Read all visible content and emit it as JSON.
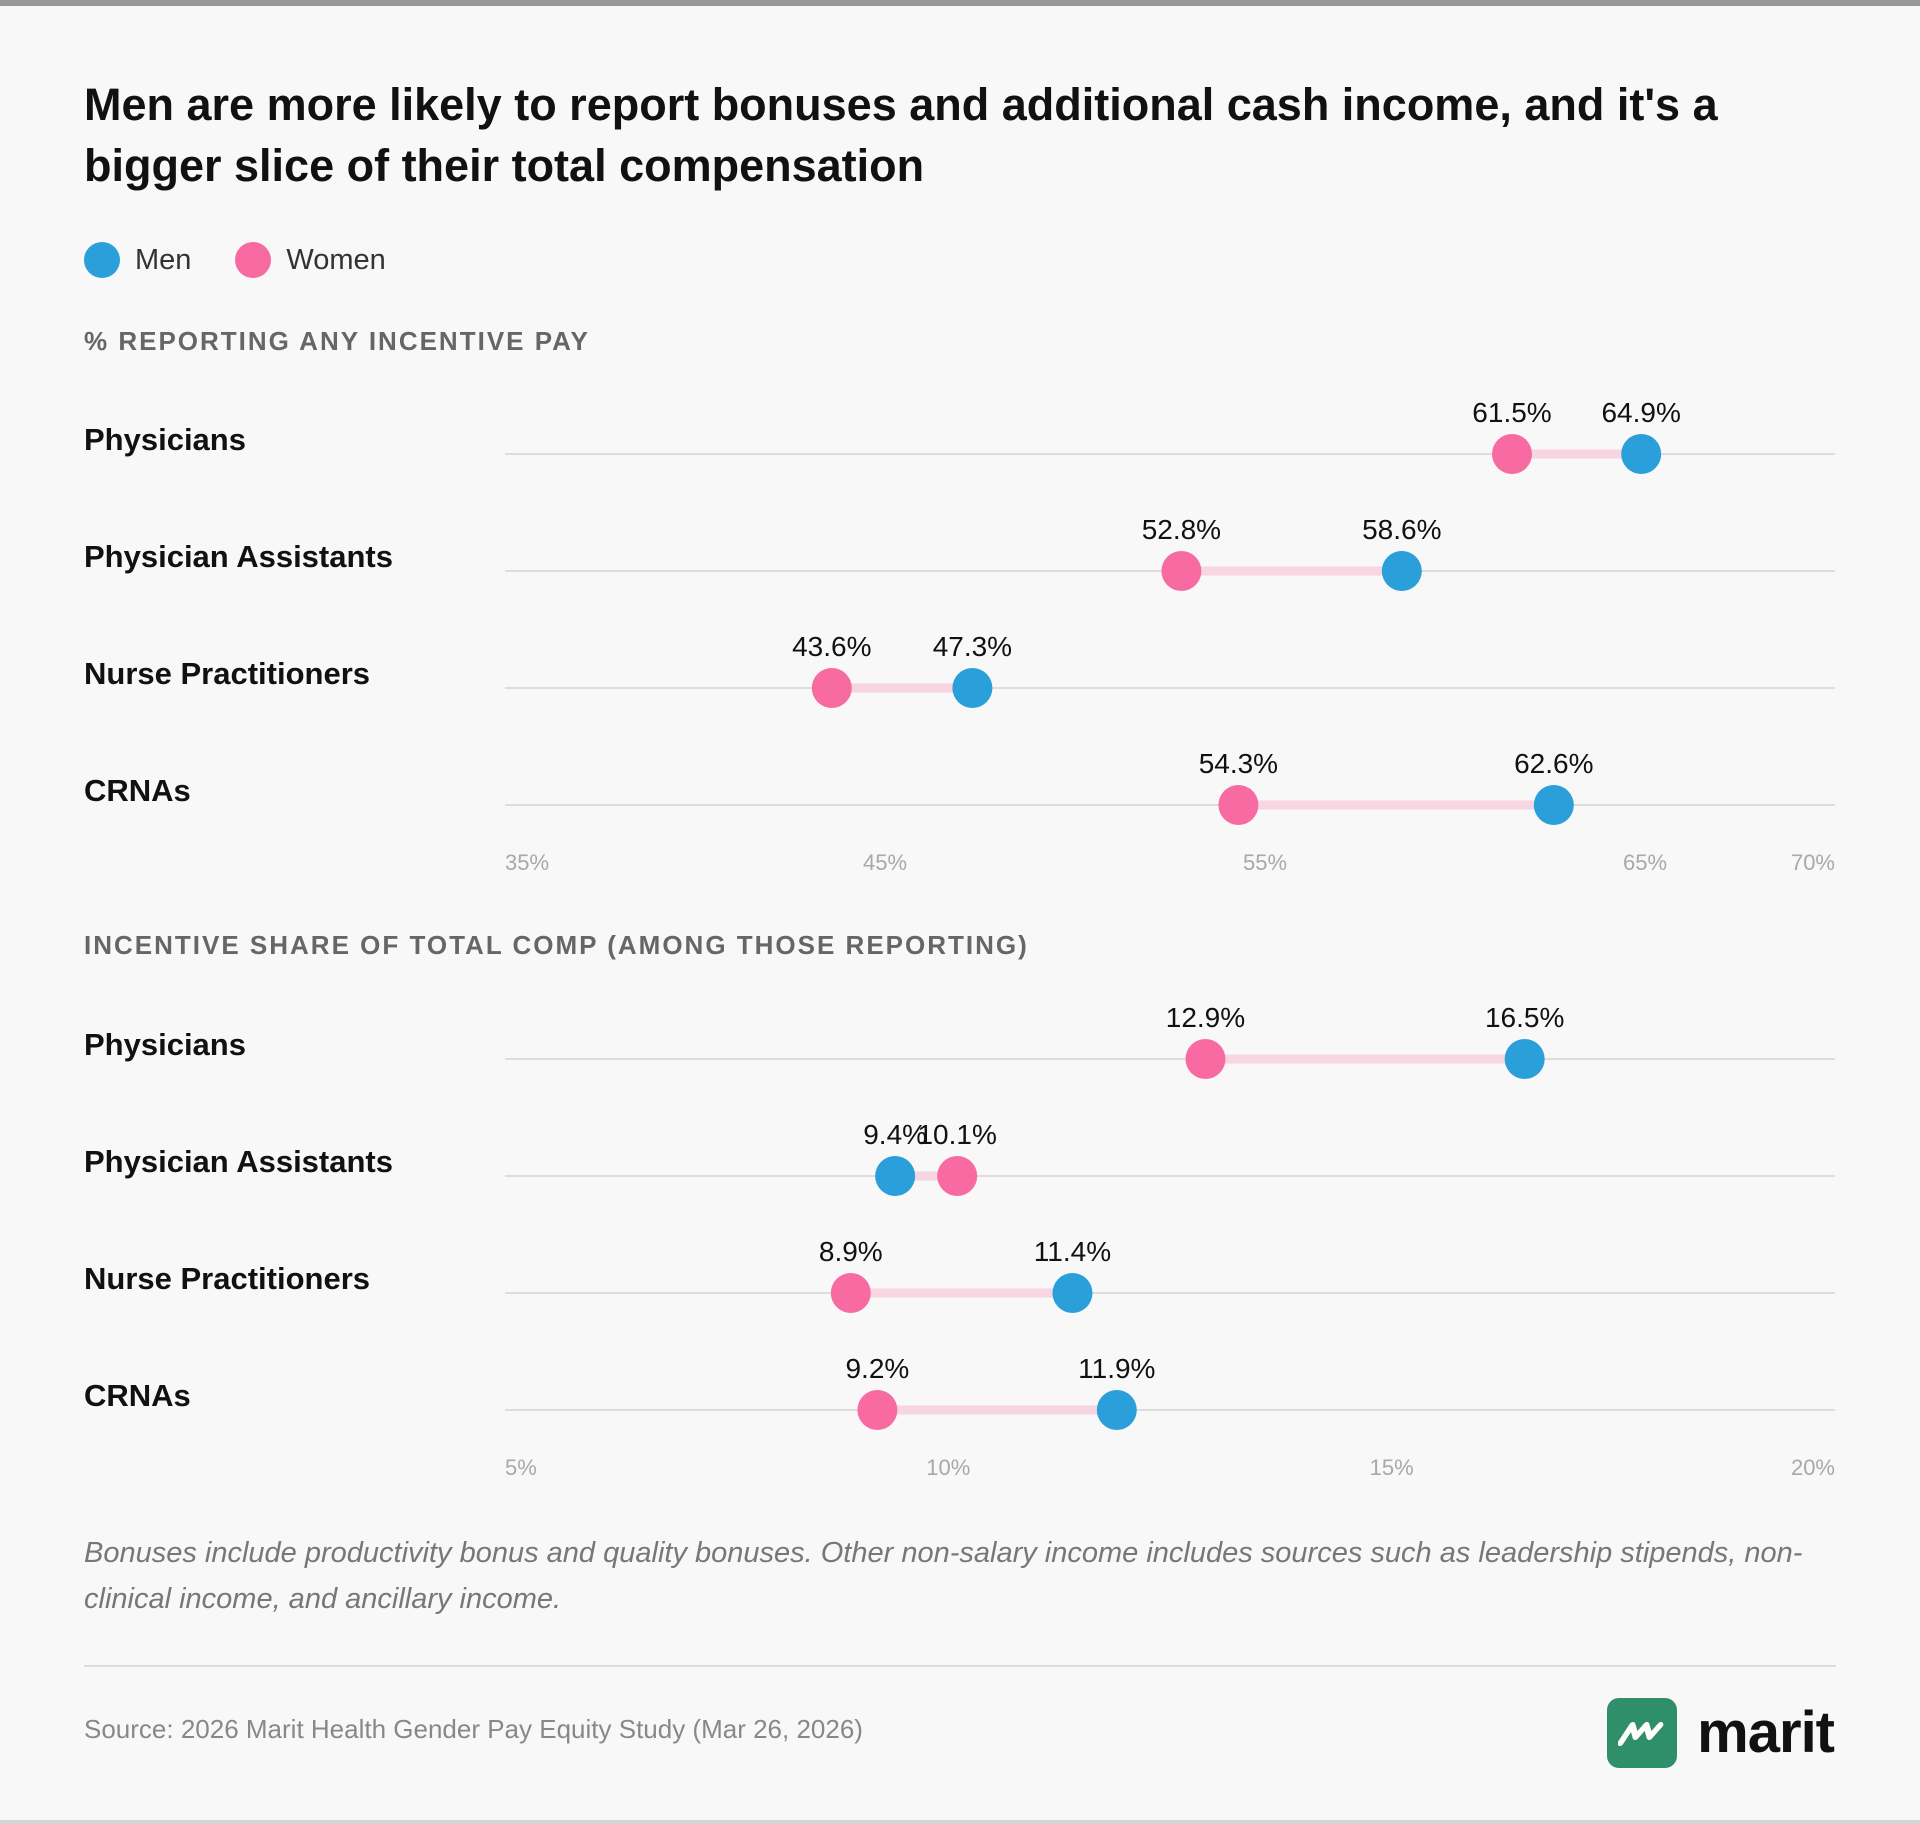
{
  "title": "Men are more likely to report bonuses and additional cash income, and it's a bigger slice of their total compensation",
  "legend": [
    {
      "name": "Men",
      "color": "#2b9fd9"
    },
    {
      "name": "Women",
      "color": "#f76ba2"
    }
  ],
  "colors": {
    "men": "#2b9fd9",
    "women": "#f76ba2",
    "connector": "#f7d5e2",
    "gridline": "#dddddd"
  },
  "chart_data": [
    {
      "type": "dumbbell",
      "title": "% REPORTING ANY INCENTIVE PAY",
      "categories": [
        "Physicians",
        "Physician Assistants",
        "Nurse Practitioners",
        "CRNAs"
      ],
      "series": [
        {
          "name": "Women",
          "values": [
            61.5,
            52.8,
            43.6,
            54.3
          ],
          "labels": [
            "61.5%",
            "52.8%",
            "43.6%",
            "54.3%"
          ]
        },
        {
          "name": "Men",
          "values": [
            64.9,
            58.6,
            47.3,
            62.6
          ],
          "labels": [
            "64.9%",
            "58.6%",
            "47.3%",
            "62.6%"
          ]
        }
      ],
      "xticks": [
        35,
        45,
        55,
        65,
        70
      ],
      "xtick_labels": [
        "35%",
        "45%",
        "55%",
        "65%",
        "70%"
      ],
      "xlim": [
        35,
        70
      ]
    },
    {
      "type": "dumbbell",
      "title": "INCENTIVE SHARE OF TOTAL COMP (AMONG THOSE REPORTING)",
      "categories": [
        "Physicians",
        "Physician Assistants",
        "Nurse Practitioners",
        "CRNAs"
      ],
      "series": [
        {
          "name": "Women",
          "values": [
            12.9,
            10.1,
            8.9,
            9.2
          ],
          "labels": [
            "12.9%",
            "10.1%",
            "8.9%",
            "9.2%"
          ]
        },
        {
          "name": "Men",
          "values": [
            16.5,
            9.4,
            11.4,
            11.9
          ],
          "labels": [
            "16.5%",
            "9.4%",
            "11.4%",
            "11.9%"
          ]
        }
      ],
      "xticks": [
        5,
        10,
        15,
        20
      ],
      "xtick_labels": [
        "5%",
        "10%",
        "15%",
        "20%"
      ],
      "xlim": [
        5,
        20
      ]
    }
  ],
  "footnote": "Bonuses include productivity bonus and quality bonuses. Other non-salary income includes sources such as leadership stipends, non-clinical income, and ancillary income.",
  "source": "Source: 2026 Marit Health Gender Pay Equity Study (Mar 26, 2026)",
  "brand": {
    "name": "marit",
    "color": "#2f8f6b"
  }
}
